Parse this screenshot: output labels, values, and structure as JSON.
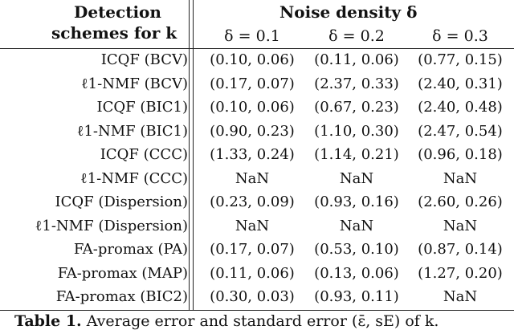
{
  "header": {
    "col0_line1": "Detection",
    "col0_line2": "schemes for k",
    "group_title": "Noise density δ",
    "columns": [
      "δ = 0.1",
      "δ = 0.2",
      "δ = 0.3"
    ]
  },
  "rows": [
    {
      "label": "ICQF (BCV)",
      "values": [
        "(0.10, 0.06)",
        "(0.11, 0.06)",
        "(0.77, 0.15)"
      ]
    },
    {
      "label": "ℓ1-NMF (BCV)",
      "values": [
        "(0.17, 0.07)",
        "(2.37, 0.33)",
        "(2.40, 0.31)"
      ]
    },
    {
      "label": "ICQF (BIC1)",
      "values": [
        "(0.10, 0.06)",
        "(0.67, 0.23)",
        "(2.40, 0.48)"
      ]
    },
    {
      "label": "ℓ1-NMF (BIC1)",
      "values": [
        "(0.90, 0.23)",
        "(1.10, 0.30)",
        "(2.47, 0.54)"
      ]
    },
    {
      "label": "ICQF (CCC)",
      "values": [
        "(1.33, 0.24)",
        "(1.14, 0.21)",
        "(0.96, 0.18)"
      ]
    },
    {
      "label": "ℓ1-NMF (CCC)",
      "values": [
        "NaN",
        "NaN",
        "NaN"
      ]
    },
    {
      "label": "ICQF (Dispersion)",
      "values": [
        "(0.23, 0.09)",
        "(0.93, 0.16)",
        "(2.60, 0.26)"
      ]
    },
    {
      "label": "ℓ1-NMF (Dispersion)",
      "values": [
        "NaN",
        "NaN",
        "NaN"
      ]
    },
    {
      "label": "FA-promax (PA)",
      "values": [
        "(0.17, 0.07)",
        "(0.53, 0.10)",
        "(0.87, 0.14)"
      ]
    },
    {
      "label": "FA-promax (MAP)",
      "values": [
        "(0.11, 0.06)",
        "(0.13, 0.06)",
        "(1.27, 0.20)"
      ]
    },
    {
      "label": "FA-promax (BIC2)",
      "values": [
        "(0.30, 0.03)",
        "(0.93, 0.11)",
        "NaN"
      ]
    }
  ],
  "caption": {
    "label": "Table 1.",
    "text": "Average error and standard error (ε̄, sE) of k."
  }
}
